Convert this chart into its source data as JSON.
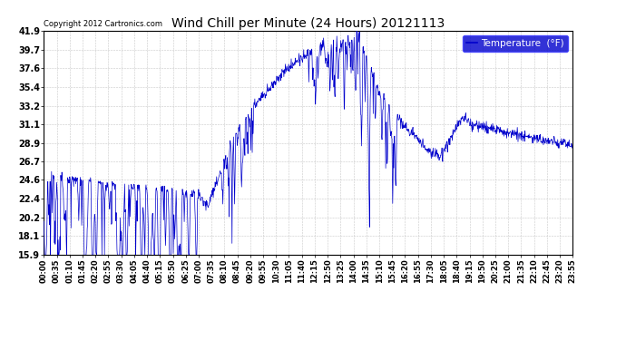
{
  "title": "Wind Chill per Minute (24 Hours) 20121113",
  "copyright": "Copyright 2012 Cartronics.com",
  "legend_label": "Temperature  (°F)",
  "yticks": [
    15.9,
    18.1,
    20.2,
    22.4,
    24.6,
    26.7,
    28.9,
    31.1,
    33.2,
    35.4,
    37.6,
    39.7,
    41.9
  ],
  "ymin": 15.9,
  "ymax": 41.9,
  "line_color": "#0000cc",
  "background_color": "#ffffff",
  "grid_color": "#bbbbbb",
  "title_color": "#000000",
  "xtick_labels": [
    "00:00",
    "00:35",
    "01:10",
    "01:45",
    "02:20",
    "02:55",
    "03:30",
    "04:05",
    "04:40",
    "05:15",
    "05:50",
    "06:25",
    "07:00",
    "07:35",
    "08:10",
    "08:45",
    "09:20",
    "09:55",
    "10:30",
    "11:05",
    "11:40",
    "12:15",
    "12:50",
    "13:25",
    "14:00",
    "14:35",
    "15:10",
    "15:45",
    "16:20",
    "16:55",
    "17:30",
    "18:05",
    "18:40",
    "19:15",
    "19:50",
    "20:25",
    "21:00",
    "21:35",
    "22:10",
    "22:45",
    "23:20",
    "23:55"
  ],
  "figsize": [
    6.9,
    3.75
  ],
  "dpi": 100
}
